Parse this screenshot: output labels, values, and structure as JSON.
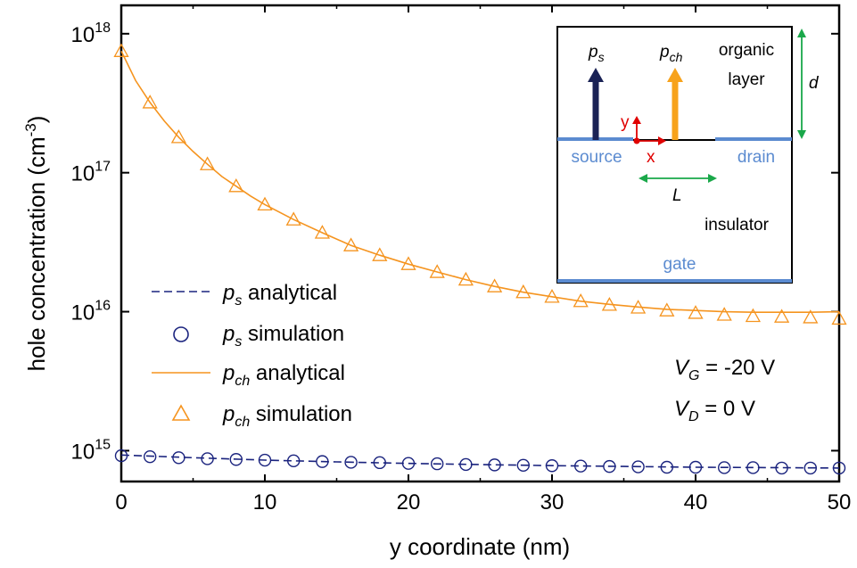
{
  "chart_data": {
    "type": "scatter",
    "title": "",
    "xlabel": "y coordinate (nm)",
    "ylabel": "hole concentration (cm^-3)",
    "ylabel_main": "hole concentration (cm",
    "ylabel_exp": "-3",
    "ylabel_close": ")",
    "xlim": [
      0,
      50
    ],
    "ylim": [
      600000000000000,
      1.6e+18
    ],
    "yscale": "log",
    "grid": false,
    "legend_placement": "left-middle",
    "x_ticks": [
      0,
      10,
      20,
      30,
      40,
      50
    ],
    "x_tick_labels": [
      "0",
      "10",
      "20",
      "30",
      "40",
      "50"
    ],
    "y_ticks": [
      {
        "value": 1000000000000000.0,
        "base": "10",
        "exp": "15"
      },
      {
        "value": 1e+16,
        "base": "10",
        "exp": "16"
      },
      {
        "value": 1e+17,
        "base": "10",
        "exp": "17"
      },
      {
        "value": 1e+18,
        "base": "10",
        "exp": "18"
      }
    ],
    "series": [
      {
        "name": "p_s analytical",
        "label_main": "p",
        "label_sub": "s",
        "label_rest": " analytical",
        "style": "dashed-line",
        "color": "#1a237e",
        "x": [
          0,
          5,
          10,
          15,
          20,
          25,
          30,
          35,
          40,
          45,
          50
        ],
        "y": [
          930000000000000.0,
          890000000000000.0,
          855000000000000.0,
          830000000000000.0,
          810000000000000.0,
          795000000000000.0,
          780000000000000.0,
          770000000000000.0,
          760000000000000.0,
          755000000000000.0,
          750000000000000.0
        ]
      },
      {
        "name": "p_s simulation",
        "label_main": "p",
        "label_sub": "s",
        "label_rest": " simulation",
        "style": "open-circle",
        "color": "#1a237e",
        "x": [
          0,
          2,
          4,
          6,
          8,
          10,
          12,
          14,
          16,
          18,
          20,
          22,
          24,
          26,
          28,
          30,
          32,
          34,
          36,
          38,
          40,
          42,
          44,
          46,
          48,
          50
        ],
        "y": [
          920000000000000.0,
          905000000000000.0,
          890000000000000.0,
          875000000000000.0,
          865000000000000.0,
          855000000000000.0,
          845000000000000.0,
          835000000000000.0,
          825000000000000.0,
          820000000000000.0,
          810000000000000.0,
          805000000000000.0,
          795000000000000.0,
          790000000000000.0,
          785000000000000.0,
          780000000000000.0,
          775000000000000.0,
          770000000000000.0,
          765000000000000.0,
          760000000000000.0,
          760000000000000.0,
          755000000000000.0,
          755000000000000.0,
          750000000000000.0,
          750000000000000.0,
          750000000000000.0
        ]
      },
      {
        "name": "p_ch analytical",
        "label_main": "p",
        "label_sub": "ch",
        "label_rest": " analytical",
        "style": "solid-line",
        "color": "#f5941f",
        "x": [
          0,
          1,
          2,
          3,
          4,
          5,
          6,
          7,
          8,
          9,
          10,
          12,
          14,
          16,
          18,
          20,
          22,
          24,
          26,
          28,
          30,
          32,
          34,
          36,
          38,
          40,
          42,
          44,
          46,
          48,
          50
        ],
        "y": [
          7.5e+17,
          4.6e+17,
          3.2e+17,
          2.35e+17,
          1.8e+17,
          1.42e+17,
          1.15e+17,
          9.4e+16,
          8e+16,
          6.8e+16,
          5.9e+16,
          4.6e+16,
          3.7e+16,
          3e+16,
          2.55e+16,
          2.2e+16,
          1.93e+16,
          1.7e+16,
          1.52e+16,
          1.38e+16,
          1.28e+16,
          1.19e+16,
          1.13e+16,
          1.08e+16,
          1.04e+16,
          1.02e+16,
          1e+16,
          9900000000000000.0,
          9900000000000000.0,
          9900000000000000.0,
          1e+16
        ]
      },
      {
        "name": "p_ch simulation",
        "label_main": "p",
        "label_sub": "ch",
        "label_rest": " simulation",
        "style": "open-triangle",
        "color": "#f5941f",
        "x": [
          0,
          2,
          4,
          6,
          8,
          10,
          12,
          14,
          16,
          18,
          20,
          22,
          24,
          26,
          28,
          30,
          32,
          34,
          36,
          38,
          40,
          42,
          44,
          46,
          48,
          50
        ],
        "y": [
          7.5e+17,
          3.2e+17,
          1.8e+17,
          1.15e+17,
          8e+16,
          5.9e+16,
          4.6e+16,
          3.7e+16,
          3e+16,
          2.55e+16,
          2.2e+16,
          1.93e+16,
          1.7e+16,
          1.52e+16,
          1.38e+16,
          1.28e+16,
          1.19e+16,
          1.12e+16,
          1.07e+16,
          1.02e+16,
          9800000000000000.0,
          9500000000000000.0,
          9300000000000000.0,
          9200000000000000.0,
          9100000000000000.0,
          8900000000000000.0
        ]
      }
    ],
    "annotations": {
      "vg": {
        "main": "V",
        "sub": "G",
        "rest": " = -20 V"
      },
      "vd": {
        "main": "V",
        "sub": "D",
        "rest": " = 0 V"
      }
    },
    "inset": {
      "organic": "organic",
      "layer": "layer",
      "source": "source",
      "drain": "drain",
      "insulator": "insulator",
      "gate": "gate",
      "d": "d",
      "L": "L",
      "x": "x",
      "y": "y",
      "ps_main": "p",
      "ps_sub": "s",
      "pch_main": "p",
      "pch_sub": "ch",
      "colors": {
        "electrode": "#5b8bd0",
        "ps_arrow": "#1a2255",
        "pch_arrow": "#f7a21b",
        "axes": "#e00000",
        "dims": "#1aa84a"
      }
    }
  }
}
